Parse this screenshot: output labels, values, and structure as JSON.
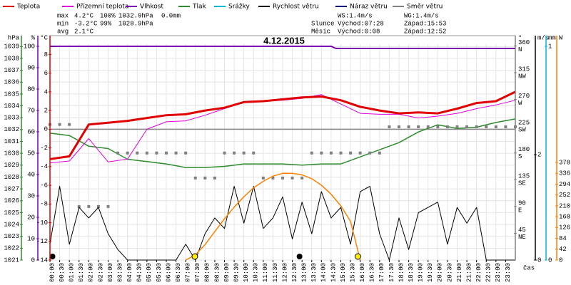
{
  "header": {
    "legend": [
      {
        "name": "Teplota",
        "color": "#e00000"
      },
      {
        "name": "Přízemní teplota",
        "color": "#e000e0"
      },
      {
        "name": "Vlhkost",
        "color": "#7a00b0"
      },
      {
        "name": "Tlak",
        "color": "#2e8b2e"
      },
      {
        "name": "Srážky",
        "color": "#00b8d8"
      },
      {
        "name": "Rychlost větru",
        "color": "#000000"
      },
      {
        "name": "Náraz větru",
        "color": "#000080"
      },
      {
        "name": "Směr větru",
        "color": "#808080"
      }
    ],
    "max": {
      "label": "max",
      "temp": "4.2°C",
      "humidity": "100%",
      "pressure": "1032.9hPa",
      "rain": "0.0mm"
    },
    "min": {
      "label": "min",
      "temp": "-3.2°C",
      "humidity": "99%",
      "pressure": "1028.9hPa"
    },
    "avg": {
      "label": "avg",
      "temp": "2.1°C"
    },
    "ws": "WS:1.4m/s",
    "wg": "WG:1.4m/s",
    "sun": {
      "label": "Slunce",
      "rise": "Východ:07:28",
      "set": "Západ:15:53"
    },
    "moon": {
      "label": "Měsíc",
      "rise": "Východ:0:08",
      "set": "Západ:12:52"
    }
  },
  "chart_data": {
    "type": "line",
    "title": "4.12.2015",
    "x_label": "čas",
    "xlim": [
      0,
      24
    ],
    "xticks": [
      {
        "value": 0,
        "label": "00:00"
      },
      {
        "value": 0.5,
        "label": "00:30"
      },
      {
        "value": 1,
        "label": "01:00"
      },
      {
        "value": 1.5,
        "label": "01:30"
      },
      {
        "value": 2,
        "label": "02:00"
      },
      {
        "value": 2.5,
        "label": "02:30"
      },
      {
        "value": 3,
        "label": "03:00"
      },
      {
        "value": 3.5,
        "label": "03:30"
      },
      {
        "value": 4,
        "label": "04:00"
      },
      {
        "value": 4.5,
        "label": "04:30"
      },
      {
        "value": 5,
        "label": "05:00"
      },
      {
        "value": 5.5,
        "label": "05:30"
      },
      {
        "value": 6,
        "label": "06:00"
      },
      {
        "value": 6.5,
        "label": "06:30"
      },
      {
        "value": 7,
        "label": "07:00"
      },
      {
        "value": 7.5,
        "label": "07:30"
      },
      {
        "value": 8,
        "label": "08:00"
      },
      {
        "value": 8.5,
        "label": "08:30"
      },
      {
        "value": 9,
        "label": "09:00"
      },
      {
        "value": 9.5,
        "label": "09:30"
      },
      {
        "value": 10,
        "label": "10:00"
      },
      {
        "value": 10.5,
        "label": "10:30"
      },
      {
        "value": 11,
        "label": "11:00"
      },
      {
        "value": 11.5,
        "label": "11:30"
      },
      {
        "value": 12,
        "label": "12:00"
      },
      {
        "value": 12.5,
        "label": "12:30"
      },
      {
        "value": 13,
        "label": "13:00"
      },
      {
        "value": 13.5,
        "label": "13:30"
      },
      {
        "value": 14,
        "label": "14:00"
      },
      {
        "value": 14.5,
        "label": "14:30"
      },
      {
        "value": 15,
        "label": "15:00"
      },
      {
        "value": 15.5,
        "label": "15:30"
      },
      {
        "value": 16,
        "label": "16:00"
      },
      {
        "value": 16.5,
        "label": "16:30"
      },
      {
        "value": 17,
        "label": "17:00"
      },
      {
        "value": 17.5,
        "label": "17:30"
      },
      {
        "value": 18,
        "label": "18:00"
      },
      {
        "value": 18.5,
        "label": "18:30"
      },
      {
        "value": 19,
        "label": "19:00"
      },
      {
        "value": 19.5,
        "label": "19:30"
      },
      {
        "value": 20,
        "label": "20:00"
      },
      {
        "value": 20.5,
        "label": "20:30"
      },
      {
        "value": 21,
        "label": "21:00"
      },
      {
        "value": 21.5,
        "label": "21:30"
      },
      {
        "value": 22,
        "label": "22:00"
      },
      {
        "value": 22.5,
        "label": "22:30"
      },
      {
        "value": 23,
        "label": "23:00"
      },
      {
        "value": 23.5,
        "label": "23:30"
      }
    ],
    "grid": true,
    "x": [
      0,
      0.5,
      1,
      1.5,
      2,
      2.5,
      3,
      3.5,
      4,
      4.5,
      5,
      5.5,
      6,
      6.5,
      7,
      7.5,
      8,
      8.5,
      9,
      9.5,
      10,
      10.5,
      11,
      11.5,
      12,
      12.5,
      13,
      13.5,
      14,
      14.5,
      15,
      15.5,
      16,
      16.5,
      17,
      17.5,
      18,
      18.5,
      19,
      19.5,
      20,
      20.5,
      21,
      21.5,
      22,
      22.5,
      23,
      23.5,
      24
    ],
    "axes": {
      "hpa": {
        "unit": "hPa",
        "side": "left",
        "color": "#2e8b2e",
        "lim": [
          1021,
          1039.2
        ],
        "ticks": [
          1021,
          1022,
          1023,
          1024,
          1025,
          1026,
          1027,
          1028,
          1029,
          1030,
          1031,
          1032,
          1033,
          1034,
          1035,
          1036,
          1037,
          1038,
          1039
        ]
      },
      "pct": {
        "unit": "%",
        "side": "left",
        "color": "#7a00b0",
        "lim": [
          0,
          101
        ],
        "ticks": [
          0,
          10,
          20,
          30,
          40,
          50,
          60,
          70,
          80,
          90,
          100
        ]
      },
      "temp": {
        "unit": "°C",
        "side": "left",
        "color": "#e00000",
        "lim": [
          -14,
          9.1
        ],
        "ticks": [
          -14,
          -12,
          -10,
          -8,
          -6,
          -4,
          -2,
          0,
          2,
          4,
          6,
          8
        ]
      },
      "deg": {
        "unit": "°",
        "side": "right",
        "color": "#808080",
        "lim": [
          0,
          363
        ],
        "ticks": [
          45,
          90,
          135,
          180,
          225,
          270,
          315,
          360
        ],
        "dir_labels": [
          "NE",
          "E",
          "SE",
          "S",
          "SW",
          "W",
          "NW",
          "N"
        ]
      },
      "ms": {
        "unit": "m/s",
        "side": "right",
        "color": "#000000",
        "lim": [
          0,
          4.1
        ],
        "ticks": [
          0,
          2
        ]
      },
      "mm": {
        "unit": "mm",
        "side": "right",
        "color": "#00b8d8",
        "lim": [
          0,
          1.01
        ],
        "ticks": [
          0,
          1
        ]
      },
      "w": {
        "unit": "W",
        "side": "right",
        "color": "#ff8000",
        "lim": [
          0,
          836
        ],
        "ticks": [
          0,
          42,
          84,
          126,
          168,
          210,
          252,
          294,
          336,
          378
        ]
      }
    },
    "series": [
      {
        "axis": "pct",
        "color": "#7a00b0",
        "style": "line",
        "width": 2,
        "x": [
          0,
          14.5,
          14.75,
          24
        ],
        "values": [
          100,
          100,
          99,
          99
        ]
      },
      {
        "axis": "hpa",
        "color": "#2e8b2e",
        "style": "line",
        "width": 1.5,
        "x": [
          0,
          1,
          2,
          3,
          4,
          5,
          6,
          7,
          8,
          9,
          10,
          11,
          12,
          13,
          14,
          15,
          16,
          17,
          18,
          19,
          20,
          21,
          22,
          23,
          24
        ],
        "values": [
          1031.7,
          1031.5,
          1030.6,
          1030.4,
          1029.5,
          1029.3,
          1029.1,
          1028.8,
          1028.8,
          1028.9,
          1029.1,
          1029.1,
          1029.1,
          1029.0,
          1029.1,
          1029.1,
          1029.7,
          1030.3,
          1030.9,
          1031.8,
          1032.4,
          1032.1,
          1032.2,
          1032.6,
          1032.9
        ]
      },
      {
        "axis": "deg",
        "color": "#808080",
        "style": "squares",
        "values": [
          228,
          228,
          228,
          90,
          90,
          90,
          90,
          180,
          180,
          180,
          180,
          180,
          180,
          180,
          180,
          138,
          138,
          138,
          180,
          180,
          180,
          180,
          138,
          138,
          138,
          138,
          138,
          180,
          180,
          180,
          180,
          180,
          180,
          180,
          180,
          224,
          224,
          224,
          224,
          224,
          224,
          224,
          224,
          224,
          224,
          224,
          224,
          224,
          224
        ]
      },
      {
        "axis": "ms",
        "color": "#000000",
        "style": "line",
        "width": 1,
        "values": [
          0.3,
          1.4,
          0.3,
          1.0,
          0.8,
          1.0,
          0.5,
          0.2,
          0,
          0,
          0,
          0,
          0,
          0,
          0.3,
          0,
          0.5,
          0.8,
          0.6,
          1.4,
          0.7,
          1.4,
          0.6,
          0.8,
          1.2,
          0.4,
          1.1,
          0.5,
          1.3,
          0.8,
          1.0,
          0.3,
          1.3,
          1.4,
          0.5,
          0,
          0.8,
          0.2,
          0.9,
          1.0,
          1.1,
          0.3,
          1.0,
          0.7,
          1.0,
          0,
          0,
          0,
          0
        ]
      },
      {
        "axis": "w",
        "color": "#ff8000",
        "style": "line",
        "width": 1.5,
        "x": [
          7,
          7.5,
          8,
          8.5,
          9,
          9.5,
          10,
          10.5,
          11,
          11.5,
          12,
          12.5,
          13,
          13.5,
          14,
          14.5,
          15,
          15.5,
          16
        ],
        "values": [
          0,
          20,
          60,
          110,
          160,
          205,
          245,
          280,
          305,
          325,
          336,
          336,
          330,
          315,
          290,
          255,
          210,
          150,
          0
        ]
      },
      {
        "axis": "temp",
        "color": "#e000e0",
        "style": "line",
        "width": 1,
        "x": [
          0,
          1,
          2,
          3,
          4,
          5,
          6,
          7,
          8,
          9,
          10,
          11,
          12,
          13,
          14,
          15,
          16,
          17,
          18,
          19,
          20,
          21,
          22,
          23,
          24
        ],
        "values": [
          -3.6,
          -3.4,
          -1.0,
          -3.5,
          -3.2,
          0.0,
          0.8,
          0.9,
          1.5,
          2.2,
          2.9,
          3.0,
          3.1,
          3.3,
          3.7,
          2.7,
          1.7,
          1.6,
          1.6,
          1.2,
          1.4,
          1.7,
          2.2,
          2.6,
          3.1
        ]
      },
      {
        "axis": "temp",
        "color": "#e00000",
        "style": "line",
        "width": 3,
        "x": [
          0,
          1,
          2,
          3,
          4,
          5,
          6,
          7,
          8,
          9,
          10,
          11,
          12,
          13,
          14,
          15,
          16,
          17,
          18,
          19,
          20,
          21,
          22,
          23,
          24
        ],
        "values": [
          -3.2,
          -2.9,
          0.5,
          0.7,
          0.9,
          1.2,
          1.5,
          1.6,
          2.0,
          2.3,
          2.9,
          3.0,
          3.2,
          3.4,
          3.5,
          3.1,
          2.4,
          2.0,
          1.7,
          1.8,
          1.7,
          2.2,
          2.8,
          3.0,
          4.0
        ]
      }
    ],
    "sun_x": [
      7.47,
      15.88
    ],
    "moon_x": [
      0.13,
      12.87
    ]
  }
}
